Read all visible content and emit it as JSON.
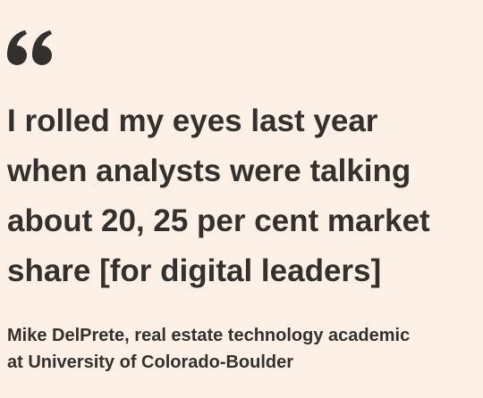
{
  "quote": {
    "lines": [
      "I rolled my eyes last year",
      "when analysts were talking",
      "about 20, 25 per cent market",
      "share [for digital leaders]"
    ]
  },
  "attribution": {
    "lines": [
      "Mike DelPrete, real estate technology academic",
      "at University of Colorado-Boulder"
    ]
  }
}
